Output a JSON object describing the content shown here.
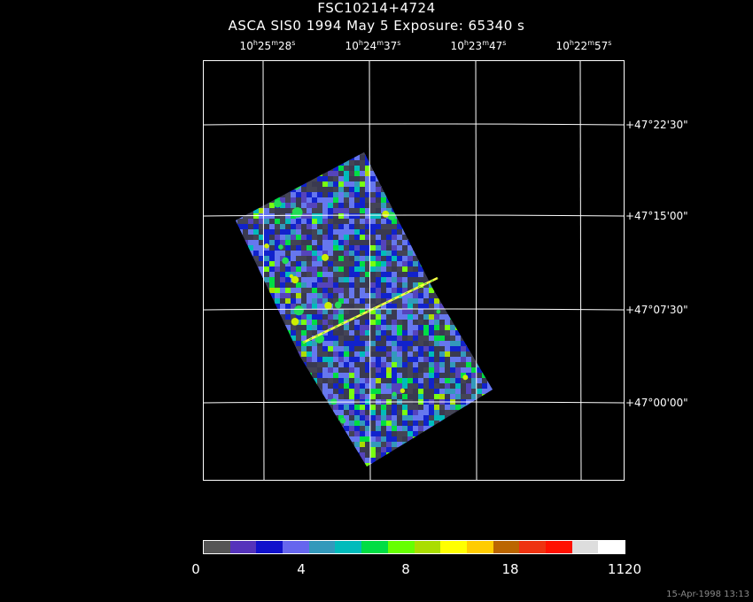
{
  "header": {
    "object": "FSC10214+4724",
    "subtitle": "ASCA SIS0    1994 May  5    Exposure: 65340 s"
  },
  "ra_ticks": [
    {
      "h": "10",
      "m": "25",
      "s": "28"
    },
    {
      "h": "10",
      "m": "24",
      "s": "37"
    },
    {
      "h": "10",
      "m": "23",
      "s": "47"
    },
    {
      "h": "10",
      "m": "22",
      "s": "57"
    }
  ],
  "dec_ticks": [
    "+47°22'30\"",
    "+47°15'00\"",
    "+47°07'30\"",
    "+47°00'00\""
  ],
  "colorbar": {
    "colors": [
      "#555555",
      "#5533bb",
      "#1111cc",
      "#6666ee",
      "#3399bb",
      "#00bbbb",
      "#00dd44",
      "#66ff00",
      "#aadd00",
      "#ffff00",
      "#ffcc00",
      "#bb6600",
      "#ee3311",
      "#ff1100",
      "#dddddd",
      "#ffffff"
    ],
    "labels": [
      "0",
      "4",
      "8",
      "18",
      "1120"
    ]
  },
  "footer": {
    "timestamp": "15-Apr-1998 13:13"
  }
}
